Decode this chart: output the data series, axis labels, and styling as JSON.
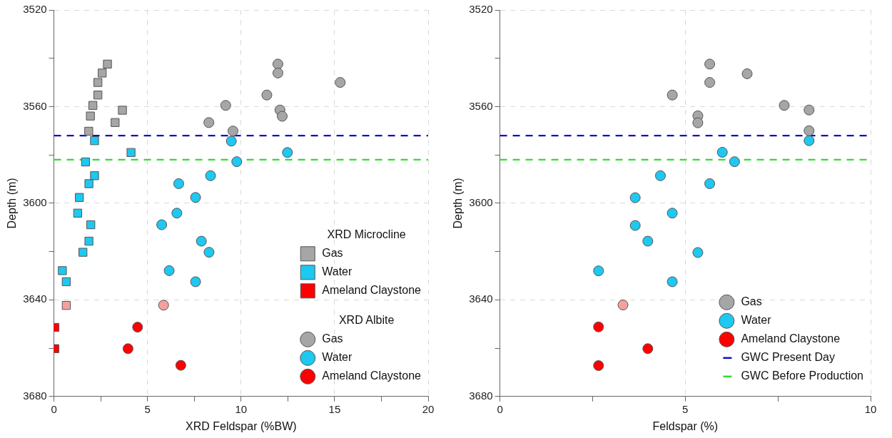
{
  "chart_data": [
    {
      "type": "scatter",
      "xlabel": "XRD Feldspar (%BW)",
      "ylabel": "Depth (m)",
      "xlim": [
        0,
        20
      ],
      "xticks": [
        0,
        {
          "value": 2.5,
          "label": null
        },
        5,
        {
          "value": 7.5,
          "label": null
        },
        10,
        {
          "value": 12.5,
          "label": null
        },
        15,
        {
          "value": 17.5,
          "label": null
        },
        20
      ],
      "ylim": [
        3680,
        3520
      ],
      "yticks": [
        3520,
        {
          "value": 3540,
          "label": null
        },
        3560,
        {
          "value": 3580,
          "label": null
        },
        3600,
        {
          "value": 3620,
          "label": null
        },
        3640,
        {
          "value": 3660,
          "label": null
        },
        3680
      ],
      "grid": true,
      "legend": "bottom right",
      "annotations": [
        "XRD Microcline",
        "XRD Albite"
      ],
      "ref_lines": [
        {
          "axis": "y",
          "value": 3572,
          "color": "#1010c0",
          "line_style": "dashed"
        },
        {
          "axis": "y",
          "value": 3582,
          "color": "#33dd33",
          "line_style": "dashed"
        }
      ],
      "series": [
        {
          "name": "Gas",
          "marker": "square",
          "color": "#a6a6a6",
          "x": [
            2.86,
            2.58,
            2.35,
            2.35,
            2.08,
            3.66,
            1.95,
            3.27,
            1.86
          ],
          "values": [
            3542.4,
            3546.1,
            3550,
            3555.2,
            3559.5,
            3561.5,
            3563.9,
            3566.6,
            3570.2
          ]
        },
        {
          "name": "Water",
          "marker": "square",
          "color": "#1ec8f0",
          "x": [
            2.17,
            4.12,
            1.69,
            2.17,
            1.87,
            1.36,
            1.27,
            1.97,
            1.87,
            1.55,
            0.45,
            0.66
          ],
          "values": [
            3574.1,
            3579,
            3582.9,
            3588.6,
            3591.9,
            3597.6,
            3604.1,
            3608.9,
            3615.7,
            3620.3,
            3627.9,
            3632.5
          ]
        },
        {
          "name": "Ameland Claystone",
          "marker": "square",
          "color": "#ff0000",
          "colors": [
            "#f4a0a0",
            "#ff0000",
            "#ff0000"
          ],
          "x": [
            0.66,
            0.05,
            0.05
          ],
          "values": [
            3642.3,
            3651.4,
            3660.2
          ]
        },
        {
          "name": "Gas",
          "marker": "circle",
          "color": "#a6a6a6",
          "x": [
            9.18,
            8.28,
            9.57,
            11.38,
            11.97,
            11.97,
            15.3,
            12.08,
            12.2
          ],
          "values": [
            3559.5,
            3566.6,
            3570.1,
            3555.2,
            3542.4,
            3546.1,
            3550,
            3561.4,
            3564
          ]
        },
        {
          "name": "Water",
          "marker": "circle",
          "color": "#1ec8f0",
          "x": [
            9.48,
            9.77,
            8.37,
            6.67,
            7.57,
            6.57,
            5.76,
            12.48,
            7.88,
            8.29,
            6.16,
            7.57
          ],
          "values": [
            3574.3,
            3582.8,
            3588.6,
            3591.9,
            3597.6,
            3604.1,
            3608.9,
            3579,
            3615.7,
            3620.3,
            3627.9,
            3632.5
          ]
        },
        {
          "name": "Ameland Claystone",
          "marker": "circle",
          "color": "#ff0000",
          "colors": [
            "#f4a0a0",
            "#ff0000",
            "#ff0000",
            "#ff0000"
          ],
          "x": [
            5.86,
            4.47,
            3.96,
            6.78
          ],
          "values": [
            3642.2,
            3651.3,
            3660.2,
            3667.1
          ]
        }
      ]
    },
    {
      "type": "scatter",
      "xlabel": "Feldspar (%)",
      "ylabel": "Depth (m)",
      "xlim": [
        0,
        10
      ],
      "xticks": [
        0,
        {
          "value": 2.5,
          "label": null
        },
        5,
        {
          "value": 7.5,
          "label": null
        },
        10
      ],
      "ylim": [
        3680,
        3520
      ],
      "yticks": [
        3520,
        {
          "value": 3540,
          "label": null
        },
        3560,
        {
          "value": 3580,
          "label": null
        },
        3600,
        {
          "value": 3620,
          "label": null
        },
        3640,
        {
          "value": 3660,
          "label": null
        },
        3680
      ],
      "grid": true,
      "legend": "bottom right",
      "marker": "circle",
      "ref_lines": [
        {
          "axis": "y",
          "value": 3572,
          "label": "GWC Present Day",
          "color": "#1010c0",
          "line_style": "dashed"
        },
        {
          "axis": "y",
          "value": 3582,
          "label": "GWC Before Production",
          "color": "#33dd33",
          "line_style": "dashed"
        }
      ],
      "series": [
        {
          "name": "Gas",
          "color": "#a6a6a6",
          "x": [
            5.66,
            6.67,
            5.66,
            4.65,
            7.67,
            8.34,
            5.34,
            5.34,
            8.34
          ],
          "values": [
            3542.4,
            3546.4,
            3550,
            3555.2,
            3559.5,
            3561.4,
            3563.8,
            3566.7,
            3570
          ]
        },
        {
          "name": "Water",
          "color": "#1ec8f0",
          "x": [
            8.34,
            6.0,
            6.33,
            4.33,
            5.66,
            3.65,
            4.65,
            3.65,
            3.99,
            5.34,
            2.66,
            4.65
          ],
          "values": [
            3574.1,
            3578.9,
            3582.8,
            3588.6,
            3591.9,
            3597.7,
            3604.1,
            3609.2,
            3615.7,
            3620.4,
            3628,
            3632.5
          ]
        },
        {
          "name": "Ameland Claystone",
          "color": "#ff0000",
          "colors": [
            "#f4a0a0",
            "#ff0000",
            "#ff0000",
            "#ff0000"
          ],
          "x": [
            3.32,
            2.66,
            3.99,
            2.66
          ],
          "values": [
            3642.1,
            3651.2,
            3660.2,
            3667.2
          ]
        }
      ]
    }
  ]
}
